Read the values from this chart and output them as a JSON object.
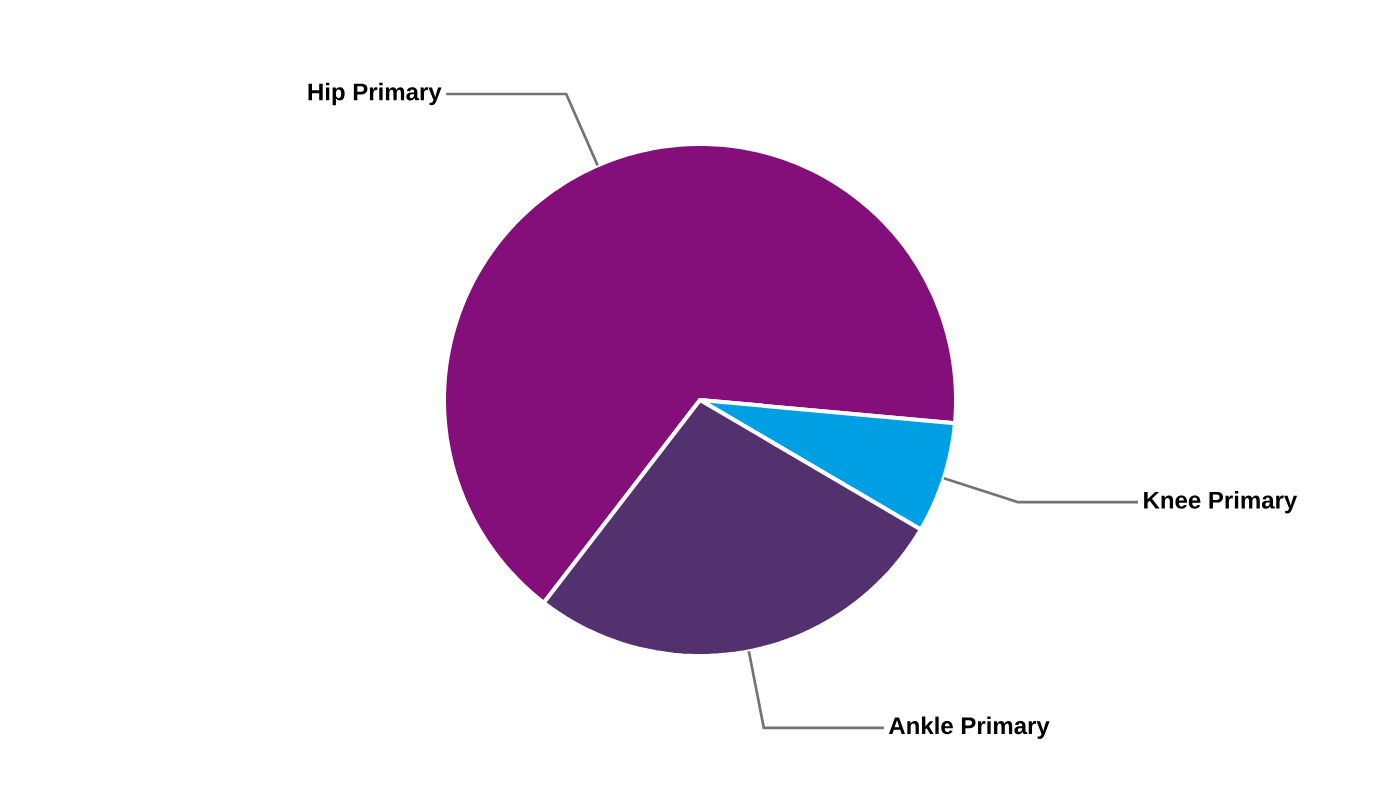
{
  "chart_data": {
    "type": "pie",
    "categories": [
      "Hip Primary",
      "Knee Primary",
      "Ankle Primary"
    ],
    "values": [
      66,
      7,
      27
    ],
    "colors": [
      "#840f7a",
      "#009fe3",
      "#53306e"
    ]
  }
}
